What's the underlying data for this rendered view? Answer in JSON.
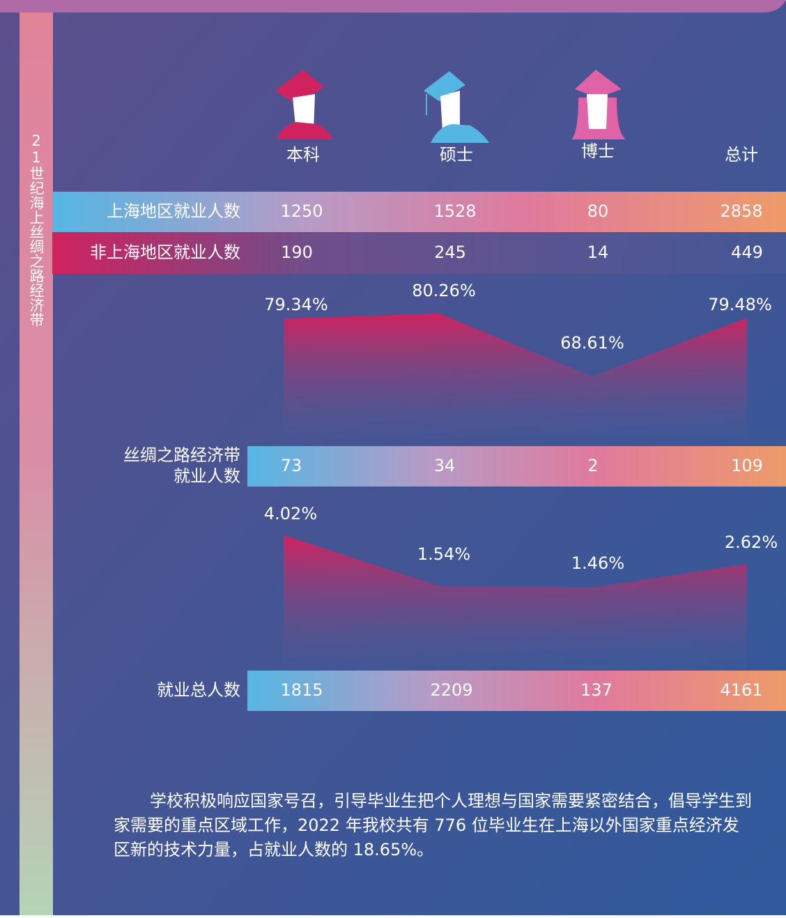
{
  "sidebar": "21世纪海上丝绸之路经济带",
  "columns": [
    "本科",
    "硕士",
    "博士",
    "总计"
  ],
  "rows": [
    {
      "label": "上海地区就业人数",
      "values": [
        1250,
        1528,
        80,
        2858
      ]
    },
    {
      "label": "非上海地区就业人数",
      "values": [
        190,
        245,
        14,
        449
      ]
    },
    {
      "label": "丝绸之路经济带\n就业人数",
      "values": [
        73,
        34,
        2,
        109
      ]
    },
    {
      "label": "就业总人数",
      "values": [
        1815,
        2209,
        137,
        4161
      ]
    }
  ],
  "ratios": [
    {
      "values": [
        79.34,
        80.26,
        68.61,
        79.48
      ],
      "value_labels": [
        "79.34%",
        "80.26%",
        "68.61%",
        "79.48%"
      ]
    },
    {
      "values": [
        4.02,
        1.54,
        1.46,
        2.62
      ],
      "value_labels": [
        "4.02%",
        "1.54%",
        "1.46%",
        "2.62%"
      ]
    }
  ],
  "paragraph": [
    "学校积极响应国家号召，引导毕业生把个人理想与国家需要紧密结合，倡导学生到",
    "家需要的重点区域工作，2022 年我校共有 776 位毕业生在上海以外国家重点经济发",
    "区新的技术力量，占就业人数的 18.65%。"
  ]
}
